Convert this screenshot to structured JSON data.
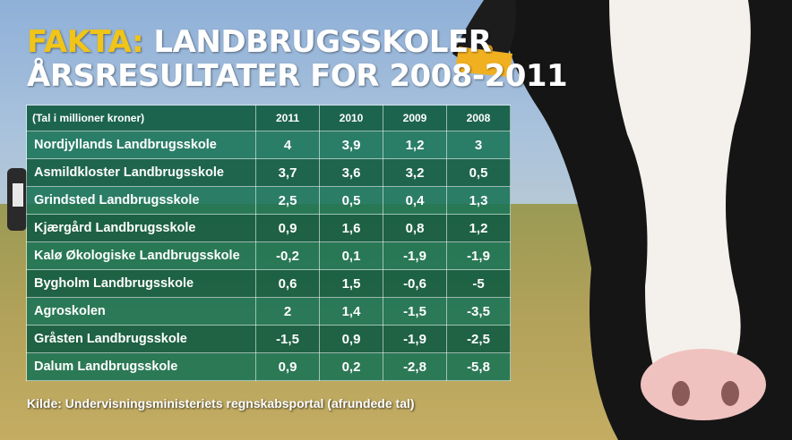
{
  "header": {
    "title_accent": "FAKTA:",
    "title_rest": "LANDBRUGSSKOLER",
    "title_line2": "ÅRSRESULTATER FOR 2008-2011"
  },
  "source": "Kilde: Undervisningsministeriets regnskabsportal (afrundede tal)",
  "chart_data": {
    "type": "table",
    "columns": [
      "(Tal i millioner kroner)",
      "2011",
      "2010",
      "2009",
      "2008"
    ],
    "rows": [
      {
        "name": "Nordjyllands Landbrugsskole",
        "values": [
          "4",
          "3,9",
          "1,2",
          "3"
        ]
      },
      {
        "name": "Asmildkloster Landbrugsskole",
        "values": [
          "3,7",
          "3,6",
          "3,2",
          "0,5"
        ]
      },
      {
        "name": "Grindsted Landbrugsskole",
        "values": [
          "2,5",
          "0,5",
          "0,4",
          "1,3"
        ]
      },
      {
        "name": "Kjærgård Landbrugsskole",
        "values": [
          "0,9",
          "1,6",
          "0,8",
          "1,2"
        ]
      },
      {
        "name": "Kalø Økologiske Landbrugsskole",
        "values": [
          "-0,2",
          "0,1",
          "-1,9",
          "-1,9"
        ]
      },
      {
        "name": "Bygholm Landbrugsskole",
        "values": [
          "0,6",
          "1,5",
          "-0,6",
          "-5"
        ]
      },
      {
        "name": "Agroskolen",
        "values": [
          "2",
          "1,4",
          "-1,5",
          "-3,5"
        ]
      },
      {
        "name": "Gråsten Landbrugsskole",
        "values": [
          "-1,5",
          "0,9",
          "-1,9",
          "-2,5"
        ]
      },
      {
        "name": "Dalum Landbrugsskole",
        "values": [
          "0,9",
          "0,2",
          "-2,8",
          "-5,8"
        ]
      }
    ]
  },
  "colors": {
    "accent": "#f0c419",
    "table_header": "#145f46",
    "table_row": "#187355",
    "ear_tag": "#f0b020"
  }
}
